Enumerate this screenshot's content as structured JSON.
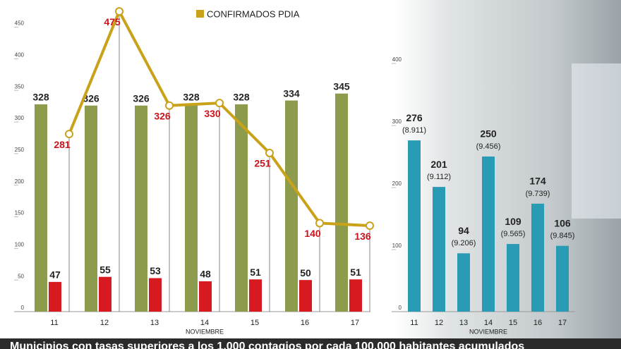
{
  "chart_data": [
    {
      "type": "bar",
      "x_label": "NOVIEMBRE",
      "categories": [
        "11",
        "12",
        "13",
        "14",
        "15",
        "16",
        "17"
      ],
      "ylim": [
        0,
        493
      ],
      "yticks": [
        0,
        50,
        100,
        150,
        200,
        250,
        300,
        350,
        400,
        450
      ],
      "series": [
        {
          "color": "#8c9c4c",
          "values": [
            328,
            326,
            326,
            328,
            328,
            334,
            345
          ]
        },
        {
          "color": "#d71920",
          "values": [
            47,
            55,
            53,
            48,
            51,
            50,
            51
          ]
        },
        {
          "name": "CONFIRMADOS PDIA",
          "type": "line",
          "color": "#c9a21a",
          "values": [
            281,
            475,
            326,
            330,
            251,
            140,
            136
          ]
        }
      ]
    },
    {
      "type": "bar",
      "x_label": "NOVIEMBRE",
      "categories": [
        "11",
        "12",
        "13",
        "14",
        "15",
        "16",
        "17"
      ],
      "ylim": [
        0,
        500
      ],
      "yticks": [
        0,
        100,
        200,
        300,
        400
      ],
      "series": [
        {
          "color": "#2a9bb5",
          "values": [
            276,
            201,
            94,
            250,
            109,
            174,
            106
          ],
          "notes": [
            "(8.911)",
            "(9.112)",
            "(9.206)",
            "(9.456)",
            "(9.565)",
            "(9.739)",
            "(9.845)"
          ]
        }
      ]
    }
  ],
  "footer": "Municipios con tasas superiores a los 1.000 contagios por cada 100.000 habitantes acumulados"
}
